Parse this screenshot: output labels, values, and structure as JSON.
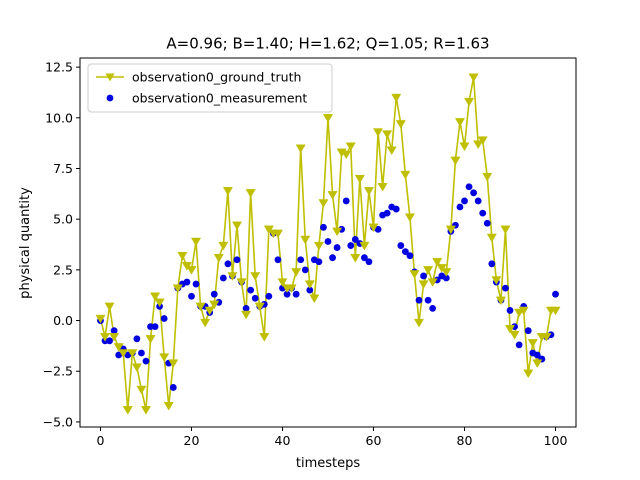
{
  "chart_data": {
    "type": "line",
    "title": "A=0.96; B=1.40; H=1.62; Q=1.05; R=1.63",
    "xlabel": "timesteps",
    "ylabel": "physical quantity",
    "xlim": [
      -4.5,
      104.5
    ],
    "ylim": [
      -5.25,
      12.95
    ],
    "xticks": [
      0,
      20,
      40,
      60,
      80,
      100
    ],
    "yticks": [
      -5.0,
      -2.5,
      0.0,
      2.5,
      5.0,
      7.5,
      10.0,
      12.5
    ],
    "xtick_labels": [
      "0",
      "20",
      "40",
      "60",
      "80",
      "100"
    ],
    "ytick_labels": [
      "−5.0",
      "−2.5",
      "0.0",
      "2.5",
      "5.0",
      "7.5",
      "10.0",
      "12.5"
    ],
    "grid": false,
    "legend_position": "top-left",
    "series": [
      {
        "name": "observation0_ground_truth",
        "style": "line-with-triangle-markers",
        "color": "#bfbf00",
        "x": [
          0,
          1,
          2,
          3,
          4,
          5,
          6,
          7,
          8,
          9,
          10,
          11,
          12,
          13,
          14,
          15,
          16,
          17,
          18,
          19,
          20,
          21,
          22,
          23,
          24,
          25,
          26,
          27,
          28,
          29,
          30,
          31,
          32,
          33,
          34,
          35,
          36,
          37,
          38,
          39,
          40,
          41,
          42,
          43,
          44,
          45,
          46,
          47,
          48,
          49,
          50,
          51,
          52,
          53,
          54,
          55,
          56,
          57,
          58,
          59,
          60,
          61,
          62,
          63,
          64,
          65,
          66,
          67,
          68,
          69,
          70,
          71,
          72,
          73,
          74,
          75,
          76,
          77,
          78,
          79,
          80,
          81,
          82,
          83,
          84,
          85,
          86,
          87,
          88,
          89,
          90,
          91,
          92,
          93,
          94,
          95,
          96,
          97,
          98,
          99,
          100
        ],
        "values": [
          0.1,
          -0.8,
          0.7,
          -0.8,
          -1.3,
          -1.6,
          -4.4,
          -1.6,
          -2.3,
          -3.4,
          -4.4,
          -0.9,
          1.2,
          0.9,
          -1.8,
          -4.2,
          -2.1,
          1.6,
          3.2,
          2.7,
          2.5,
          3.9,
          0.7,
          -0.1,
          0.5,
          0.8,
          3.1,
          3.7,
          6.4,
          2.2,
          4.7,
          1.9,
          0.3,
          6.3,
          2.2,
          0.7,
          -0.8,
          4.5,
          4.3,
          4.3,
          1.9,
          1.6,
          1.6,
          2.4,
          8.5,
          4.0,
          1.8,
          1.1,
          3.7,
          5.8,
          10.0,
          6.2,
          4.4,
          8.3,
          8.2,
          8.6,
          3.1,
          7.0,
          3.7,
          6.4,
          4.6,
          9.3,
          6.6,
          9.2,
          8.4,
          11.0,
          9.7,
          7.2,
          5.1,
          2.3,
          -0.1,
          1.8,
          2.5,
          1.9,
          2.9,
          2.6,
          2.4,
          4.5,
          7.9,
          9.8,
          8.6,
          10.8,
          12.0,
          8.7,
          8.9,
          7.1,
          4.1,
          2.0,
          1.0,
          4.5,
          -0.4,
          -0.7,
          0.4,
          0.5,
          -2.6,
          -1.1,
          -2.1,
          -0.8,
          -0.8,
          0.5,
          0.5
        ]
      },
      {
        "name": "observation0_measurement",
        "style": "scatter",
        "color": "#0000e0",
        "x": [
          0,
          1,
          2,
          3,
          4,
          5,
          6,
          7,
          8,
          9,
          10,
          11,
          12,
          13,
          14,
          15,
          16,
          17,
          18,
          19,
          20,
          21,
          22,
          23,
          24,
          25,
          26,
          27,
          28,
          29,
          30,
          31,
          32,
          33,
          34,
          35,
          36,
          37,
          38,
          39,
          40,
          41,
          42,
          43,
          44,
          45,
          46,
          47,
          48,
          49,
          50,
          51,
          52,
          53,
          54,
          55,
          56,
          57,
          58,
          59,
          60,
          61,
          62,
          63,
          64,
          65,
          66,
          67,
          68,
          69,
          70,
          71,
          72,
          73,
          74,
          75,
          76,
          77,
          78,
          79,
          80,
          81,
          82,
          83,
          84,
          85,
          86,
          87,
          88,
          89,
          90,
          91,
          92,
          93,
          94,
          95,
          96,
          97,
          98,
          99,
          100
        ],
        "values": [
          0.0,
          -1.0,
          -1.0,
          -0.5,
          -1.7,
          -1.4,
          -1.7,
          -1.6,
          -0.9,
          -1.6,
          -2.0,
          -0.3,
          -0.3,
          0.7,
          0.1,
          -2.1,
          -3.3,
          1.6,
          1.8,
          1.9,
          1.2,
          1.8,
          0.7,
          0.7,
          0.4,
          1.3,
          0.9,
          2.1,
          2.8,
          2.2,
          3.0,
          1.9,
          0.6,
          1.5,
          1.1,
          0.7,
          0.8,
          1.2,
          4.3,
          3.0,
          1.6,
          1.3,
          1.6,
          1.3,
          3.0,
          2.5,
          1.5,
          3.0,
          2.9,
          4.6,
          3.9,
          3.1,
          3.6,
          4.5,
          5.9,
          3.7,
          4.0,
          3.8,
          3.1,
          2.9,
          4.6,
          4.5,
          5.2,
          5.3,
          5.6,
          5.5,
          3.7,
          3.4,
          3.2,
          2.4,
          1.0,
          2.2,
          1.0,
          0.6,
          2.0,
          2.2,
          2.1,
          4.4,
          4.7,
          5.6,
          5.9,
          6.6,
          6.3,
          5.9,
          5.3,
          4.8,
          2.8,
          1.9,
          1.0,
          1.6,
          0.5,
          -0.3,
          -1.2,
          0.7,
          -0.5,
          -1.6,
          -1.7,
          -1.9,
          -0.8,
          -0.7,
          1.3
        ]
      }
    ]
  }
}
